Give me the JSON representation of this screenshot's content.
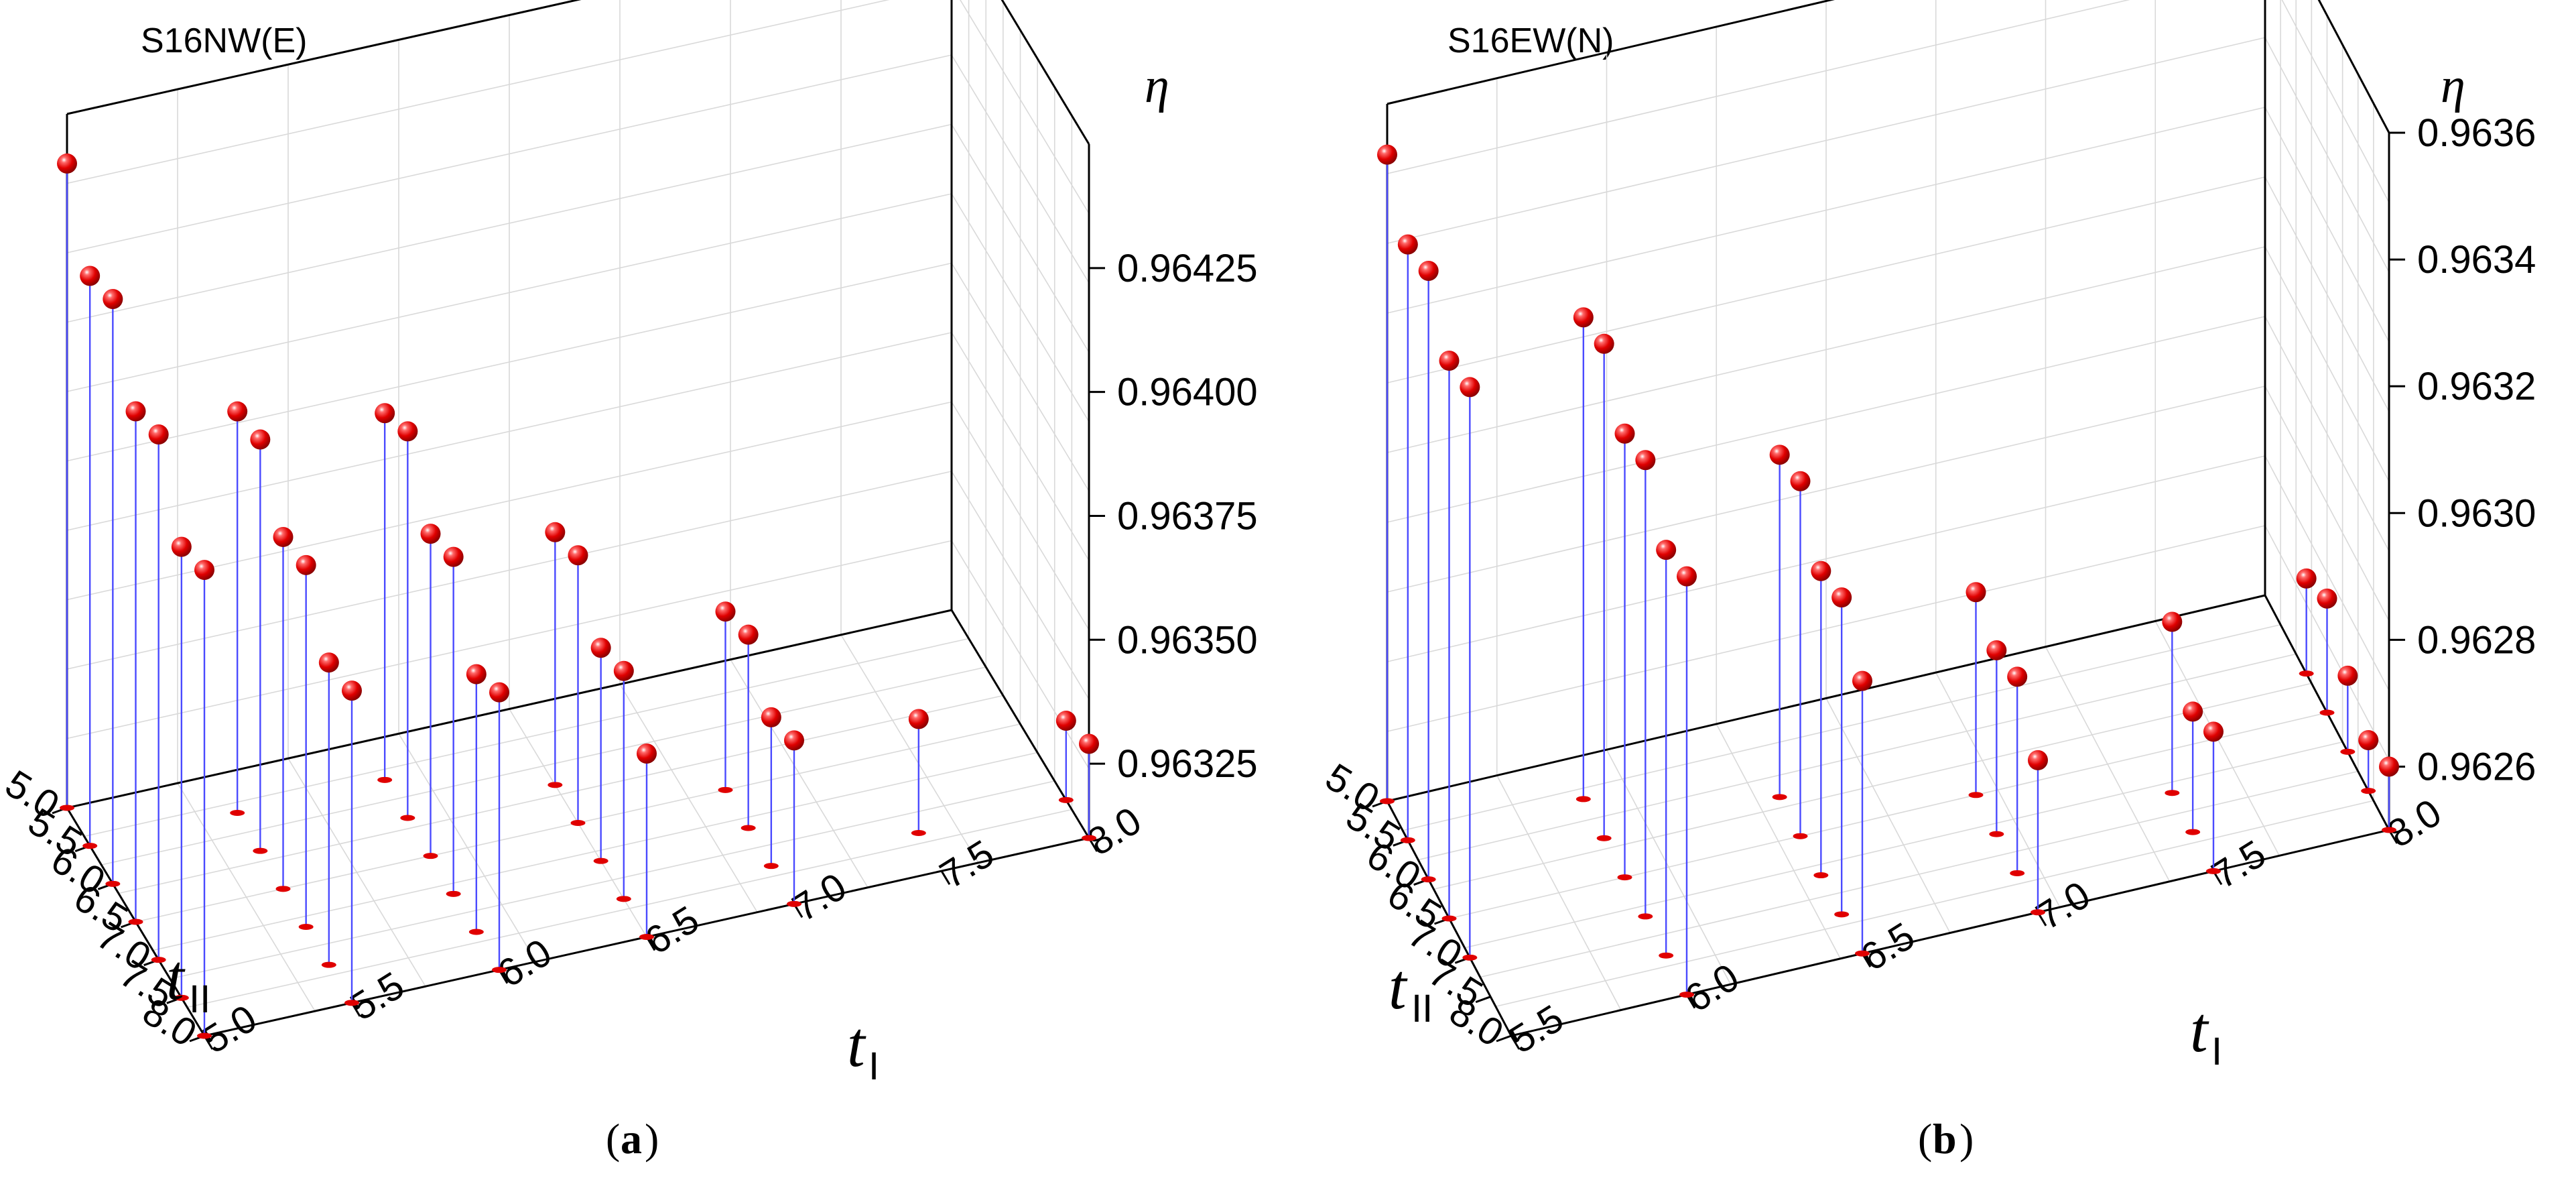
{
  "colors": {
    "marker": "#e00000",
    "stem": "#4a4aff",
    "grid": "#d9d9d9"
  },
  "chart_data": [
    {
      "type": "scatter3d-stem",
      "title": "S16NW(E)",
      "caption_letter": "a",
      "axes": {
        "x": {
          "label": "t",
          "subscript": "I",
          "ticks": [
            "5.0",
            "5.5",
            "6.0",
            "6.5",
            "7.0",
            "7.5",
            "8.0"
          ],
          "range": [
            5.0,
            8.0
          ]
        },
        "y": {
          "label": "t",
          "subscript": "II",
          "ticks": [
            "5.0",
            "5.5",
            "6.0",
            "6.5",
            "7.0",
            "7.5",
            "8.0"
          ],
          "range": [
            5.0,
            8.0
          ]
        },
        "z": {
          "label": "η",
          "ticks": [
            "0.96325",
            "0.96350",
            "0.96375",
            "0.96400",
            "0.96425"
          ],
          "range": [
            0.9631,
            0.9645
          ]
        }
      },
      "points": [
        {
          "tI": 5.0,
          "tII": 5.0,
          "eta": 0.9644
        },
        {
          "tI": 5.0,
          "tII": 5.5,
          "eta": 0.96425
        },
        {
          "tI": 5.0,
          "tII": 6.0,
          "eta": 0.96428
        },
        {
          "tI": 5.0,
          "tII": 6.5,
          "eta": 0.96413
        },
        {
          "tI": 5.0,
          "tII": 7.0,
          "eta": 0.96416
        },
        {
          "tI": 5.0,
          "tII": 7.5,
          "eta": 0.96401
        },
        {
          "tI": 5.0,
          "tII": 8.0,
          "eta": 0.96404
        },
        {
          "tI": 5.5,
          "tII": 5.5,
          "eta": 0.96391
        },
        {
          "tI": 5.5,
          "tII": 6.0,
          "eta": 0.96393
        },
        {
          "tI": 5.5,
          "tII": 6.5,
          "eta": 0.96381
        },
        {
          "tI": 5.5,
          "tII": 7.0,
          "eta": 0.96383
        },
        {
          "tI": 5.5,
          "tII": 7.5,
          "eta": 0.96371
        },
        {
          "tI": 5.5,
          "tII": 8.0,
          "eta": 0.96373
        },
        {
          "tI": 6.0,
          "tII": 5.5,
          "eta": 0.96384
        },
        {
          "tI": 6.0,
          "tII": 6.0,
          "eta": 0.96388
        },
        {
          "tI": 6.0,
          "tII": 6.5,
          "eta": 0.96375
        },
        {
          "tI": 6.0,
          "tII": 7.0,
          "eta": 0.96378
        },
        {
          "tI": 6.0,
          "tII": 7.5,
          "eta": 0.96362
        },
        {
          "tI": 6.0,
          "tII": 8.0,
          "eta": 0.96366
        },
        {
          "tI": 6.5,
          "tII": 6.0,
          "eta": 0.96361
        },
        {
          "tI": 6.5,
          "tII": 6.5,
          "eta": 0.96364
        },
        {
          "tI": 6.5,
          "tII": 7.0,
          "eta": 0.96353
        },
        {
          "tI": 6.5,
          "tII": 7.5,
          "eta": 0.96356
        },
        {
          "tI": 6.5,
          "tII": 8.0,
          "eta": 0.96347
        },
        {
          "tI": 7.0,
          "tII": 6.5,
          "eta": 0.96346
        },
        {
          "tI": 7.0,
          "tII": 7.0,
          "eta": 0.96349
        },
        {
          "tI": 7.0,
          "tII": 7.5,
          "eta": 0.9634
        },
        {
          "tI": 7.0,
          "tII": 8.0,
          "eta": 0.96343
        },
        {
          "tI": 7.5,
          "tII": 7.5,
          "eta": 0.96333
        },
        {
          "tI": 8.0,
          "tII": 7.5,
          "eta": 0.96326
        },
        {
          "tI": 8.0,
          "tII": 8.0,
          "eta": 0.96329
        }
      ]
    },
    {
      "type": "scatter3d-stem",
      "title": "S16EW(N)",
      "caption_letter": "b",
      "axes": {
        "x": {
          "label": "t",
          "subscript": "I",
          "ticks": [
            "5.5",
            "6.0",
            "6.5",
            "7.0",
            "7.5",
            "8.0"
          ],
          "range": [
            5.5,
            8.0
          ]
        },
        "y": {
          "label": "t",
          "subscript": "II",
          "ticks": [
            "5.0",
            "5.5",
            "6.0",
            "6.5",
            "7.0",
            "7.5",
            "8.0"
          ],
          "range": [
            5.0,
            8.0
          ]
        },
        "z": {
          "label": "η",
          "ticks": [
            "0.9626",
            "0.9628",
            "0.9630",
            "0.9632",
            "0.9634",
            "0.9636"
          ],
          "range": [
            0.9625,
            0.9636
          ]
        }
      },
      "points": [
        {
          "tI": 5.5,
          "tII": 5.0,
          "eta": 0.96352
        },
        {
          "tI": 5.5,
          "tII": 5.5,
          "eta": 0.96344
        },
        {
          "tI": 5.5,
          "tII": 6.0,
          "eta": 0.96346
        },
        {
          "tI": 5.5,
          "tII": 6.5,
          "eta": 0.96338
        },
        {
          "tI": 5.5,
          "tII": 7.0,
          "eta": 0.9634
        },
        {
          "tI": 6.0,
          "tII": 5.5,
          "eta": 0.96326
        },
        {
          "tI": 6.0,
          "tII": 6.0,
          "eta": 0.96328
        },
        {
          "tI": 6.0,
          "tII": 6.5,
          "eta": 0.9632
        },
        {
          "tI": 6.0,
          "tII": 7.0,
          "eta": 0.96322
        },
        {
          "tI": 6.0,
          "tII": 7.5,
          "eta": 0.96314
        },
        {
          "tI": 6.0,
          "tII": 8.0,
          "eta": 0.96316
        },
        {
          "tI": 6.5,
          "tII": 6.0,
          "eta": 0.96304
        },
        {
          "tI": 6.5,
          "tII": 6.5,
          "eta": 0.96306
        },
        {
          "tI": 6.5,
          "tII": 7.0,
          "eta": 0.96298
        },
        {
          "tI": 6.5,
          "tII": 7.5,
          "eta": 0.963
        },
        {
          "tI": 6.5,
          "tII": 8.0,
          "eta": 0.96293
        },
        {
          "tI": 7.0,
          "tII": 6.5,
          "eta": 0.96282
        },
        {
          "tI": 7.0,
          "tII": 7.0,
          "eta": 0.96279
        },
        {
          "tI": 7.0,
          "tII": 7.5,
          "eta": 0.96281
        },
        {
          "tI": 7.0,
          "tII": 8.0,
          "eta": 0.96274
        },
        {
          "tI": 7.5,
          "tII": 7.0,
          "eta": 0.96277
        },
        {
          "tI": 7.5,
          "tII": 7.5,
          "eta": 0.96269
        },
        {
          "tI": 7.5,
          "tII": 8.0,
          "eta": 0.96272
        },
        {
          "tI": 8.0,
          "tII": 6.0,
          "eta": 0.96265
        },
        {
          "tI": 8.0,
          "tII": 6.5,
          "eta": 0.96268
        },
        {
          "tI": 8.0,
          "tII": 7.0,
          "eta": 0.96262
        },
        {
          "tI": 8.0,
          "tII": 7.5,
          "eta": 0.96258
        },
        {
          "tI": 8.0,
          "tII": 8.0,
          "eta": 0.9626
        }
      ]
    }
  ]
}
